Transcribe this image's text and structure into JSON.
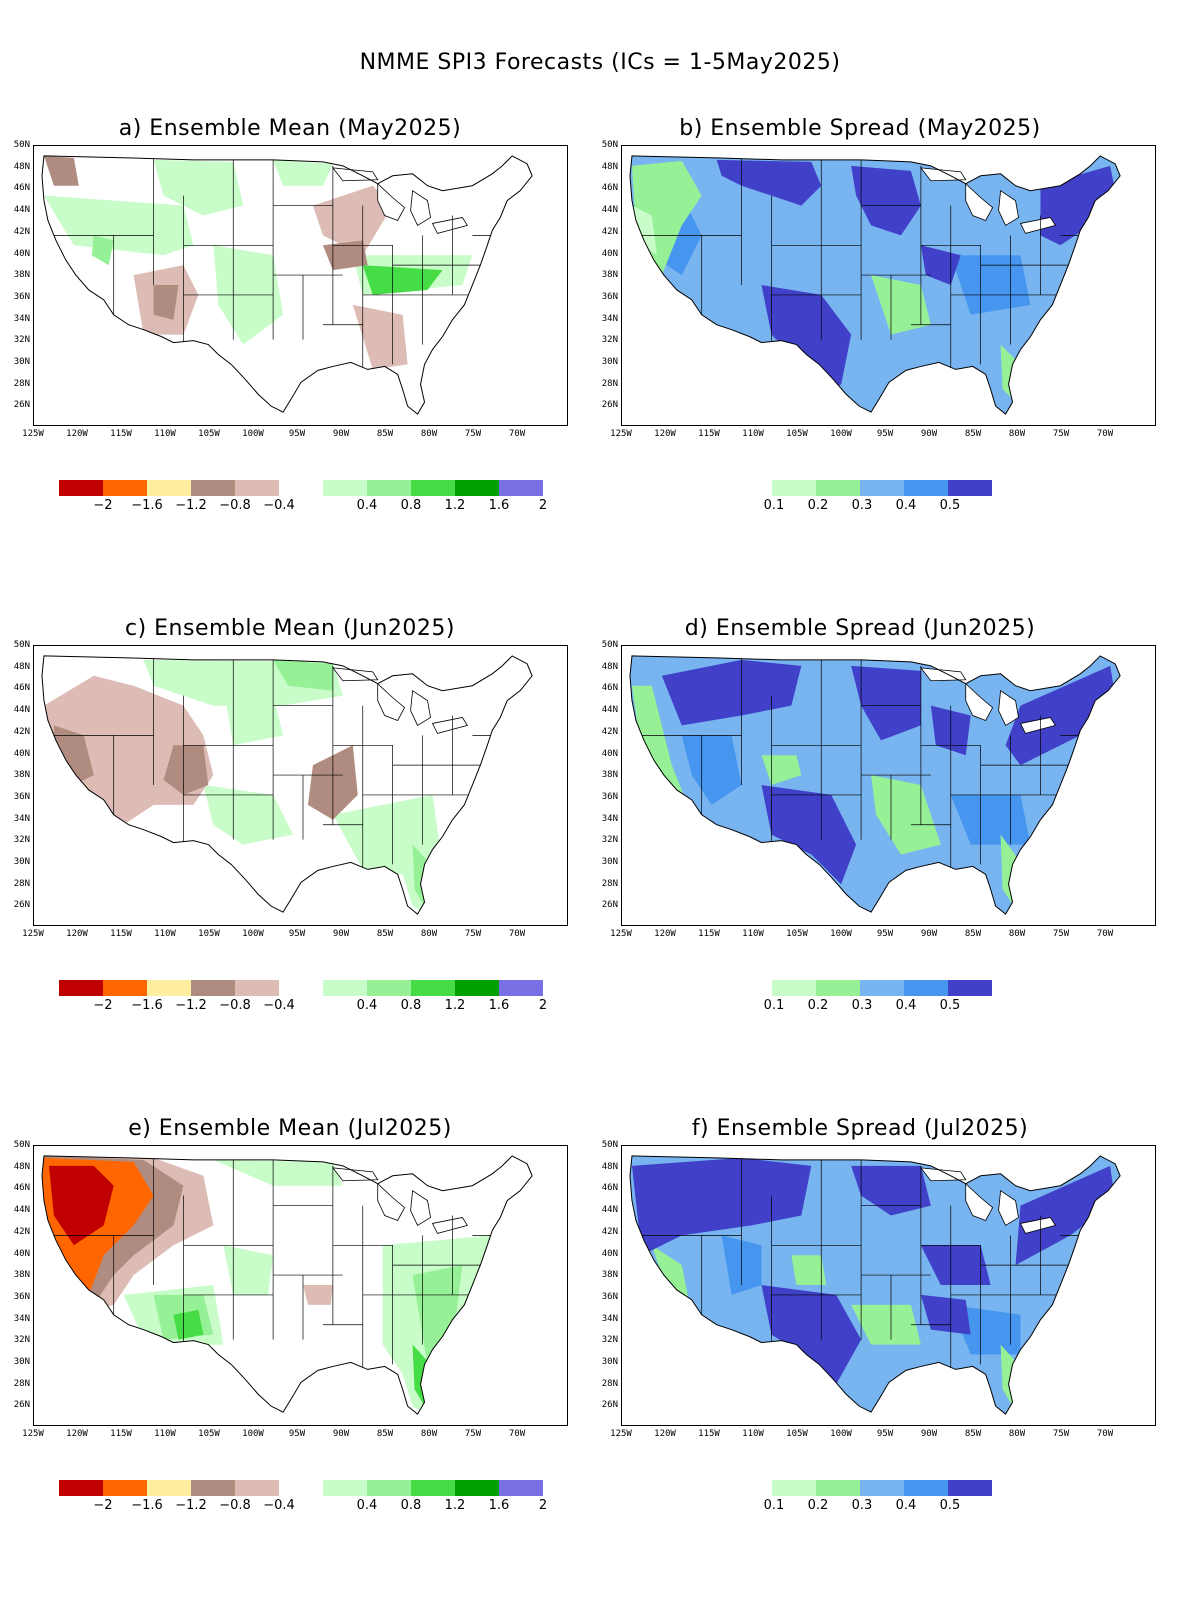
{
  "page_title": "NMME SPI3 Forecasts (ICs = 1-5May2025)",
  "panels": [
    {
      "id": "a",
      "title": "a) Ensemble Mean (May2025)",
      "kind": "mean"
    },
    {
      "id": "b",
      "title": "b) Ensemble Spread (May2025)",
      "kind": "spread"
    },
    {
      "id": "c",
      "title": "c) Ensemble Mean (Jun2025)",
      "kind": "mean"
    },
    {
      "id": "d",
      "title": "d) Ensemble Spread (Jun2025)",
      "kind": "spread"
    },
    {
      "id": "e",
      "title": "e) Ensemble Mean (Jul2025)",
      "kind": "mean"
    },
    {
      "id": "f",
      "title": "f) Ensemble Spread (Jul2025)",
      "kind": "spread"
    }
  ],
  "lat_labels": [
    "50N",
    "48N",
    "46N",
    "44N",
    "42N",
    "40N",
    "38N",
    "36N",
    "34N",
    "32N",
    "30N",
    "28N",
    "26N"
  ],
  "lon_labels": [
    "125W",
    "120W",
    "115W",
    "110W",
    "105W",
    "100W",
    "95W",
    "90W",
    "85W",
    "80W",
    "75W",
    "70W"
  ],
  "mean_colorbar": {
    "colors": [
      "#c00000",
      "#ff6600",
      "#ffeea0",
      "#b08c80",
      "#dcbcb4",
      "#ffffff",
      "#c8fcc8",
      "#96f096",
      "#46dc46",
      "#00a000",
      "#7a70e6"
    ],
    "labels": [
      "−2",
      "−1.6",
      "−1.2",
      "−0.8",
      "−0.4",
      "0.4",
      "0.8",
      "1.2",
      "1.6",
      "2"
    ]
  },
  "spread_colorbar": {
    "colors": [
      "#c8fcc8",
      "#96f096",
      "#78b4f0",
      "#4696f0",
      "#4040c8"
    ],
    "labels": [
      "0.1",
      "0.2",
      "0.3",
      "0.4",
      "0.5"
    ]
  },
  "map_colors": {
    "land": "#ffffff",
    "border": "#000000",
    "spread_base": "#78b4f0",
    "spread_high": "#4040c8",
    "spread_mid": "#4696f0",
    "spread_low": "#96f096",
    "spread_lowest": "#c8fcc8",
    "mean_dry": "#b08c80",
    "mean_drylight": "#dcbcb4",
    "mean_wet": "#96f096",
    "mean_wetlight": "#c8fcc8",
    "mean_wetdark": "#46dc46",
    "mean_verydry": "#ff6600",
    "mean_extremedry": "#c00000"
  }
}
